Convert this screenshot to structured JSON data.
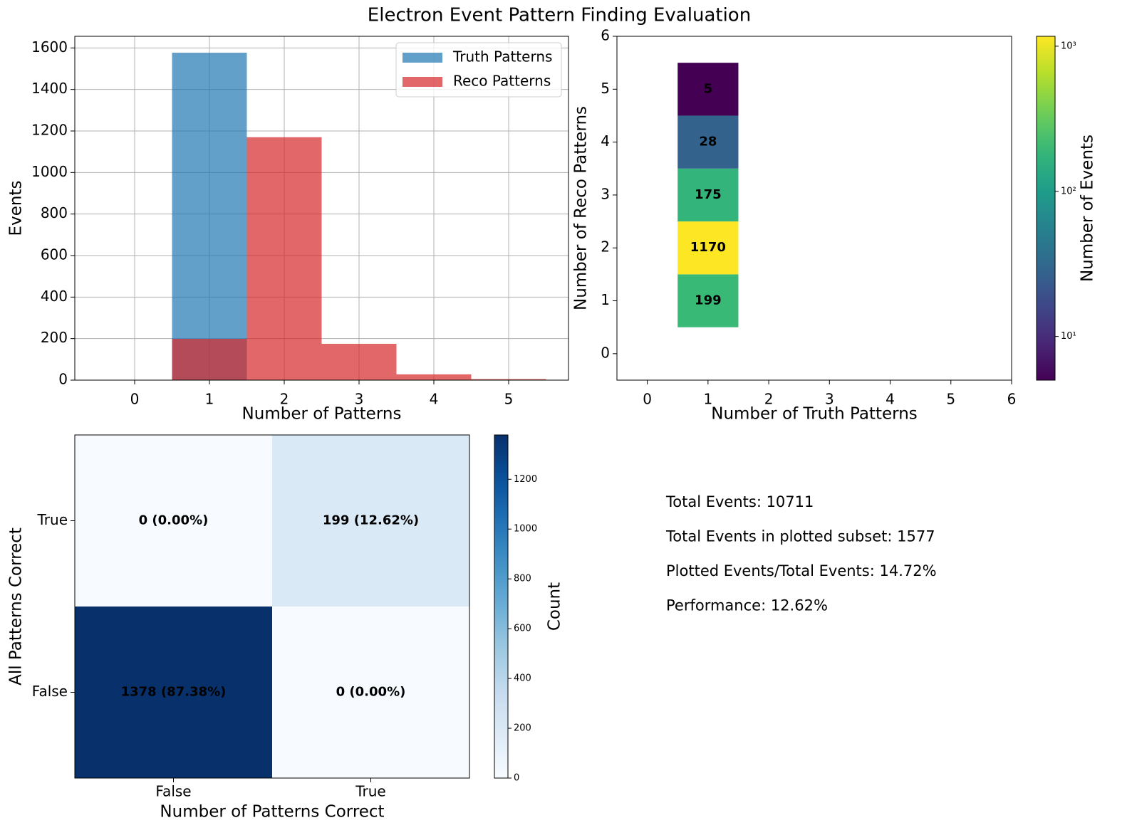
{
  "title": "Electron Event Pattern Finding Evaluation",
  "chart_data": [
    {
      "type": "histogram",
      "xlabel": "Number of Patterns",
      "ylabel": "Events",
      "bins": [
        -0.5,
        0.5,
        1.5,
        2.5,
        3.5,
        4.5,
        5.5
      ],
      "series": [
        {
          "name": "Truth Patterns",
          "color": "#1f77b4",
          "alpha": 0.7,
          "values": [
            0,
            1577,
            0,
            0,
            0,
            0
          ]
        },
        {
          "name": "Reco Patterns",
          "color": "#d62728",
          "alpha": 0.7,
          "values": [
            0,
            199,
            1170,
            175,
            28,
            5
          ]
        }
      ],
      "xlim": [
        -0.8,
        5.8
      ],
      "xticks": [
        0,
        1,
        2,
        3,
        4,
        5
      ],
      "ylim": [
        0,
        1656
      ],
      "yticks": [
        0,
        200,
        400,
        600,
        800,
        1000,
        1200,
        1400,
        1600
      ],
      "grid": true,
      "legend": "upper right"
    },
    {
      "type": "heatmap2d",
      "xlabel": "Number of Truth Patterns",
      "ylabel": "Number of Reco Patterns",
      "x": [
        1,
        1,
        1,
        1,
        1
      ],
      "y": [
        1,
        2,
        3,
        4,
        5
      ],
      "values": [
        199,
        1170,
        175,
        28,
        5
      ],
      "xlim": [
        -0.5,
        6
      ],
      "xticks": [
        0,
        1,
        2,
        3,
        4,
        5,
        6
      ],
      "ylim": [
        -0.5,
        6
      ],
      "yticks": [
        0,
        1,
        2,
        3,
        4,
        5,
        6
      ],
      "colorbar": {
        "label": "Number of Events",
        "scale": "log",
        "colormap": "viridis",
        "lim": [
          5,
          1170
        ],
        "ticks": [
          {
            "value": 10,
            "label": "10¹"
          },
          {
            "value": 100,
            "label": "10²"
          },
          {
            "value": 1000,
            "label": "10³"
          }
        ]
      }
    },
    {
      "type": "confusion",
      "xlabel": "Number of Patterns Correct",
      "ylabel": "All Patterns Correct",
      "categories": [
        "False",
        "True"
      ],
      "rows": [
        "True",
        "False"
      ],
      "values": [
        [
          0,
          199
        ],
        [
          1378,
          0
        ]
      ],
      "value_labels": [
        [
          "0 (0.00%)",
          "199 (12.62%)"
        ],
        [
          "1378 (87.38%)",
          "0 (0.00%)"
        ]
      ],
      "label_color": "#ffa500",
      "colorbar": {
        "label": "Count",
        "scale": "linear",
        "colormap": "Blues",
        "lim": [
          0,
          1378
        ],
        "ticks": [
          0,
          200,
          400,
          600,
          800,
          1000,
          1200
        ]
      }
    }
  ],
  "summary": [
    "Total Events: 10711",
    "Total Events in plotted subset: 1577",
    "Plotted Events/Total Events: 14.72%",
    "Performance: 12.62%"
  ]
}
